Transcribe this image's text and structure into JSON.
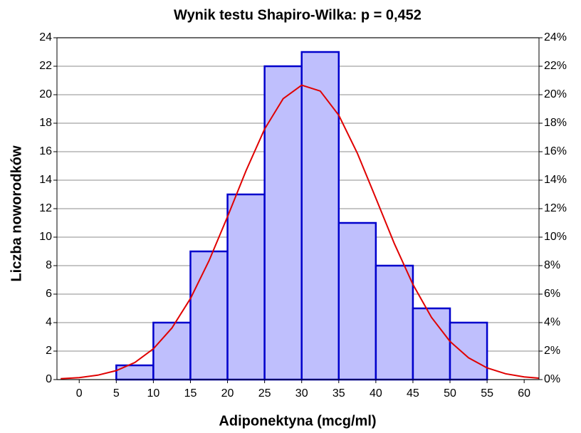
{
  "chart_data": {
    "type": "histogram",
    "title": "Wynik testu Shapiro-Wilka:  p = 0,452",
    "xlabel": "Adiponektyna (mcg/ml)",
    "ylabel": "Liczba noworodków",
    "bins": [
      5,
      10,
      15,
      20,
      25,
      30,
      35,
      40,
      45,
      50,
      55
    ],
    "counts": [
      1,
      4,
      9,
      13,
      22,
      23,
      11,
      8,
      5,
      4
    ],
    "color": "#bfbffd",
    "edgecolor": "#0000cc",
    "xlim": [
      -3,
      62
    ],
    "xticks": [
      0,
      5,
      10,
      15,
      20,
      25,
      30,
      35,
      40,
      45,
      50,
      55,
      60
    ],
    "ylim": [
      0,
      24
    ],
    "yticks": [
      0,
      2,
      4,
      6,
      8,
      10,
      12,
      14,
      16,
      18,
      20,
      22,
      24
    ],
    "y2lim": [
      0,
      24
    ],
    "y2ticks": [
      {
        "value": 0,
        "label": "0%"
      },
      {
        "value": 2,
        "label": "2%"
      },
      {
        "value": 4,
        "label": "4%"
      },
      {
        "value": 6,
        "label": "6%"
      },
      {
        "value": 8,
        "label": "8%"
      },
      {
        "value": 10,
        "label": "10%"
      },
      {
        "value": 12,
        "label": "12%"
      },
      {
        "value": 14,
        "label": "14%"
      },
      {
        "value": 16,
        "label": "16%"
      },
      {
        "value": 18,
        "label": "18%"
      },
      {
        "value": 20,
        "label": "20%"
      },
      {
        "value": 22,
        "label": "22%"
      },
      {
        "value": 24,
        "label": "24%"
      }
    ],
    "grid": true,
    "curve": {
      "color": "#e00000",
      "x": [
        -2.5,
        0,
        2.5,
        5,
        7.5,
        10,
        12.5,
        15,
        17.5,
        20,
        22.5,
        25,
        27.5,
        30,
        32.5,
        35,
        37.5,
        40,
        42.5,
        45,
        47.5,
        50,
        52.5,
        55,
        57.5,
        60,
        62
      ],
      "values": [
        0.06,
        0.14,
        0.31,
        0.63,
        1.2,
        2.16,
        3.62,
        5.69,
        8.34,
        11.44,
        14.67,
        17.59,
        19.72,
        20.67,
        20.26,
        18.56,
        15.9,
        12.74,
        9.54,
        6.68,
        4.37,
        2.68,
        1.53,
        0.82,
        0.41,
        0.19,
        0.1
      ]
    }
  }
}
